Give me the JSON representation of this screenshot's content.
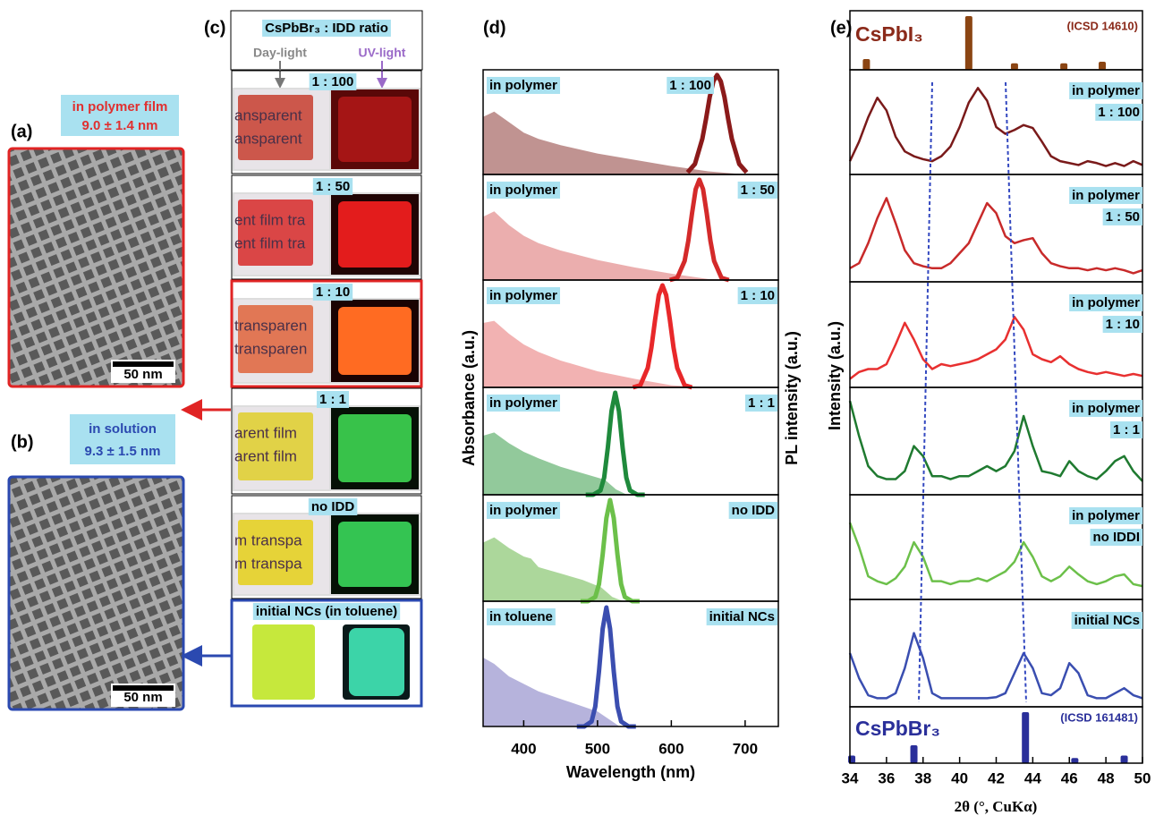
{
  "panels": {
    "a": {
      "label": "(a)",
      "caption": [
        "in polymer film",
        "9.0 ± 1.4 nm"
      ],
      "scale_bar": "50 nm"
    },
    "b": {
      "label": "(b)",
      "caption": [
        "in solution",
        "9.3 ± 1.5 nm"
      ],
      "scale_bar": "50 nm"
    },
    "c": {
      "label": "(c)",
      "header": "CsPbBr₃ : IDD ratio",
      "day": "Day-light",
      "uv": "UV-light",
      "rows": [
        {
          "ratio": "1 : 100",
          "text": [
            "ansparent",
            "ansparent"
          ]
        },
        {
          "ratio": "1 : 50",
          "text": [
            "ent film tra",
            "ent film tra"
          ]
        },
        {
          "ratio": "1 : 10",
          "text": [
            "transparen",
            "transparen"
          ]
        },
        {
          "ratio": "1 : 1",
          "text": [
            "arent film",
            "arent film"
          ]
        },
        {
          "ratio": "no IDD",
          "text": [
            "m transpa",
            "m transpa"
          ]
        },
        {
          "ratio": "initial  NCs (in toluene)"
        }
      ]
    }
  },
  "chart_data": [
    {
      "type": "area",
      "label": "(d)",
      "xlabel": "Wavelength (nm)",
      "ylabel": "Absorbance (a.u.)",
      "y2label": "PL intensity (a.u.)",
      "xlim": [
        345,
        745
      ],
      "xticks": [
        400,
        500,
        600,
        700
      ],
      "ylim": [
        0,
        1
      ],
      "panels": [
        {
          "left": "in polymer",
          "right": "1 : 100",
          "absorbance": {
            "color": "#b5807e",
            "x": [
              345,
              360,
              380,
              400,
              420,
              450,
              500,
              550,
              600,
              650,
              700
            ],
            "values": [
              0.55,
              0.6,
              0.5,
              0.4,
              0.34,
              0.28,
              0.2,
              0.14,
              0.08,
              0.03,
              0
            ]
          },
          "pl": {
            "color": "#8b1a1a",
            "x": [
              622,
              632,
              642,
              647,
              652,
              657,
              662,
              667,
              672,
              677,
              682,
              692,
              702
            ],
            "values": [
              0.02,
              0.1,
              0.34,
              0.53,
              0.74,
              0.89,
              0.95,
              0.89,
              0.74,
              0.53,
              0.34,
              0.1,
              0.02
            ]
          }
        },
        {
          "left": "in polymer",
          "right": "1 : 50",
          "absorbance": {
            "color": "#e8a0a0",
            "x": [
              345,
              360,
              380,
              400,
              420,
              450,
              500,
              550,
              600,
              650,
              700
            ],
            "values": [
              0.6,
              0.65,
              0.52,
              0.42,
              0.35,
              0.28,
              0.19,
              0.12,
              0.06,
              0.01,
              0
            ]
          },
          "pl": {
            "color": "#d42a2a",
            "x": [
              598,
              608,
              618,
              623,
              628,
              633,
              638,
              643,
              648,
              653,
              658,
              668,
              678
            ],
            "values": [
              0,
              0.02,
              0.18,
              0.37,
              0.63,
              0.86,
              0.95,
              0.86,
              0.63,
              0.37,
              0.18,
              0.02,
              0
            ]
          }
        },
        {
          "left": "in polymer",
          "right": "1 : 10",
          "absorbance": {
            "color": "#f0a4a4",
            "x": [
              345,
              360,
              380,
              400,
              420,
              450,
              500,
              550,
              600,
              650,
              700
            ],
            "values": [
              0.6,
              0.62,
              0.5,
              0.4,
              0.33,
              0.25,
              0.15,
              0.08,
              0.02,
              0,
              0
            ]
          },
          "pl": {
            "color": "#e8282a",
            "x": [
              548,
              558,
              568,
              573,
              578,
              583,
              588,
              593,
              598,
              603,
              608,
              618,
              628
            ],
            "values": [
              0,
              0.02,
              0.18,
              0.37,
              0.63,
              0.86,
              0.95,
              0.86,
              0.63,
              0.37,
              0.18,
              0.02,
              0
            ]
          }
        },
        {
          "left": "in polymer",
          "right": "1 : 1",
          "absorbance": {
            "color": "#7fbf8a",
            "x": [
              345,
              360,
              380,
              400,
              420,
              450,
              480,
              510,
              525,
              540
            ],
            "values": [
              0.55,
              0.58,
              0.48,
              0.4,
              0.34,
              0.26,
              0.2,
              0.14,
              0.05,
              0
            ]
          },
          "pl": {
            "color": "#1f8a3c",
            "x": [
              484,
              494,
              504,
              509,
              514,
              519,
              524,
              529,
              534,
              539,
              544,
              554,
              564
            ],
            "values": [
              0,
              0,
              0.04,
              0.16,
              0.44,
              0.78,
              0.95,
              0.78,
              0.44,
              0.16,
              0.04,
              0,
              0
            ]
          }
        },
        {
          "left": "in polymer",
          "right": "no IDD",
          "absorbance": {
            "color": "#9dd08a",
            "x": [
              345,
              360,
              380,
              400,
              410,
              420,
              450,
              480,
              505,
              520,
              535
            ],
            "values": [
              0.55,
              0.6,
              0.5,
              0.42,
              0.4,
              0.32,
              0.26,
              0.2,
              0.13,
              0.04,
              0
            ]
          },
          "pl": {
            "color": "#6cc04a",
            "x": [
              477,
              487,
              497,
              502,
              507,
              512,
              517,
              522,
              527,
              532,
              537,
              547,
              557
            ],
            "values": [
              0,
              0,
              0.04,
              0.16,
              0.44,
              0.78,
              0.95,
              0.78,
              0.44,
              0.16,
              0.04,
              0,
              0
            ]
          }
        },
        {
          "left": "in toluene",
          "right": "initial  NCs",
          "absorbance": {
            "color": "#a9a6d6",
            "x": [
              345,
              360,
              380,
              400,
              420,
              450,
              480,
              500,
              515,
              530
            ],
            "values": [
              0.55,
              0.5,
              0.4,
              0.34,
              0.28,
              0.22,
              0.16,
              0.12,
              0.06,
              0
            ]
          },
          "pl": {
            "color": "#3b4eb0",
            "x": [
              472,
              482,
              492,
              497,
              502,
              507,
              512,
              517,
              522,
              527,
              532,
              542,
              552
            ],
            "values": [
              0,
              0,
              0.04,
              0.16,
              0.44,
              0.78,
              0.95,
              0.78,
              0.44,
              0.16,
              0.04,
              0,
              0
            ]
          }
        }
      ]
    },
    {
      "type": "line",
      "label": "(e)",
      "ylabel": "Intensity (a.u.)",
      "xlabel": "2θ (°, CuKα)",
      "xlim": [
        34,
        50
      ],
      "xticks": [
        34,
        36,
        38,
        40,
        42,
        44,
        46,
        48,
        50
      ],
      "ylim": [
        0,
        1
      ],
      "x": [
        34,
        34.5,
        35,
        35.5,
        36,
        36.5,
        37,
        37.5,
        38,
        38.5,
        39,
        39.5,
        40,
        40.5,
        41,
        41.5,
        42,
        42.5,
        43,
        43.5,
        44,
        44.5,
        45,
        45.5,
        46,
        46.5,
        47,
        47.5,
        48,
        48.5,
        49,
        49.5,
        50
      ],
      "references": [
        {
          "name": "CsPbI₃",
          "source": "(ICSD 14610)",
          "color": "#8b4513",
          "x": [
            34.9,
            40.5,
            43,
            45.7,
            47.8
          ],
          "values": [
            0.2,
            1,
            0.12,
            0.12,
            0.15
          ]
        },
        {
          "name": "CsPbBr₃",
          "source": "(ICSD 161481)",
          "color": "#2a2f9a",
          "x": [
            34.1,
            37.5,
            43.6,
            46.3,
            49
          ],
          "values": [
            0.15,
            0.35,
            1,
            0.1,
            0.15
          ]
        }
      ],
      "panels": [
        {
          "labels": [
            "in polymer",
            "1 : 100"
          ],
          "color": "#7a1a1a",
          "values": [
            0.1,
            0.3,
            0.55,
            0.75,
            0.62,
            0.35,
            0.2,
            0.15,
            0.12,
            0.1,
            0.15,
            0.25,
            0.45,
            0.7,
            0.85,
            0.72,
            0.45,
            0.38,
            0.42,
            0.47,
            0.44,
            0.3,
            0.15,
            0.1,
            0.08,
            0.06,
            0.1,
            0.08,
            0.05,
            0.08,
            0.05,
            0.1,
            0.06
          ]
        },
        {
          "labels": [
            "in polymer",
            "1 : 50"
          ],
          "color": "#c82a2a",
          "values": [
            0.1,
            0.15,
            0.35,
            0.6,
            0.8,
            0.55,
            0.28,
            0.15,
            0.12,
            0.1,
            0.1,
            0.15,
            0.25,
            0.35,
            0.55,
            0.75,
            0.65,
            0.42,
            0.35,
            0.38,
            0.4,
            0.25,
            0.15,
            0.12,
            0.1,
            0.1,
            0.08,
            0.1,
            0.08,
            0.1,
            0.08,
            0.05,
            0.08
          ]
        },
        {
          "labels": [
            "in polymer",
            "1 : 10"
          ],
          "color": "#e83030",
          "values": [
            0.05,
            0.12,
            0.15,
            0.15,
            0.2,
            0.4,
            0.62,
            0.45,
            0.25,
            0.15,
            0.2,
            0.18,
            0.2,
            0.22,
            0.25,
            0.3,
            0.35,
            0.45,
            0.68,
            0.55,
            0.3,
            0.25,
            0.22,
            0.28,
            0.2,
            0.15,
            0.12,
            0.1,
            0.12,
            0.1,
            0.08,
            0.1,
            0.08
          ]
        },
        {
          "labels": [
            "in polymer",
            "1 : 1"
          ],
          "color": "#1f7a30",
          "values": [
            0.9,
            0.55,
            0.25,
            0.15,
            0.12,
            0.12,
            0.2,
            0.45,
            0.35,
            0.15,
            0.15,
            0.12,
            0.15,
            0.15,
            0.2,
            0.25,
            0.2,
            0.25,
            0.4,
            0.75,
            0.45,
            0.2,
            0.18,
            0.15,
            0.3,
            0.2,
            0.15,
            0.12,
            0.2,
            0.3,
            0.35,
            0.2,
            0.1
          ]
        },
        {
          "labels": [
            "in polymer",
            "no IDDI"
          ],
          "color": "#6cc04a",
          "values": [
            0.75,
            0.5,
            0.2,
            0.15,
            0.12,
            0.18,
            0.3,
            0.55,
            0.4,
            0.15,
            0.15,
            0.12,
            0.15,
            0.15,
            0.18,
            0.15,
            0.2,
            0.25,
            0.35,
            0.55,
            0.4,
            0.2,
            0.15,
            0.2,
            0.3,
            0.22,
            0.15,
            0.12,
            0.15,
            0.2,
            0.22,
            0.12,
            0.1
          ]
        },
        {
          "labels": [
            "initial NCs"
          ],
          "color": "#3a4eb0",
          "values": [
            0.5,
            0.25,
            0.08,
            0.05,
            0.05,
            0.1,
            0.35,
            0.7,
            0.45,
            0.1,
            0.05,
            0.05,
            0.05,
            0.05,
            0.05,
            0.05,
            0.06,
            0.1,
            0.3,
            0.5,
            0.35,
            0.1,
            0.08,
            0.15,
            0.4,
            0.3,
            0.08,
            0.05,
            0.05,
            0.1,
            0.15,
            0.08,
            0.05
          ]
        }
      ]
    }
  ]
}
